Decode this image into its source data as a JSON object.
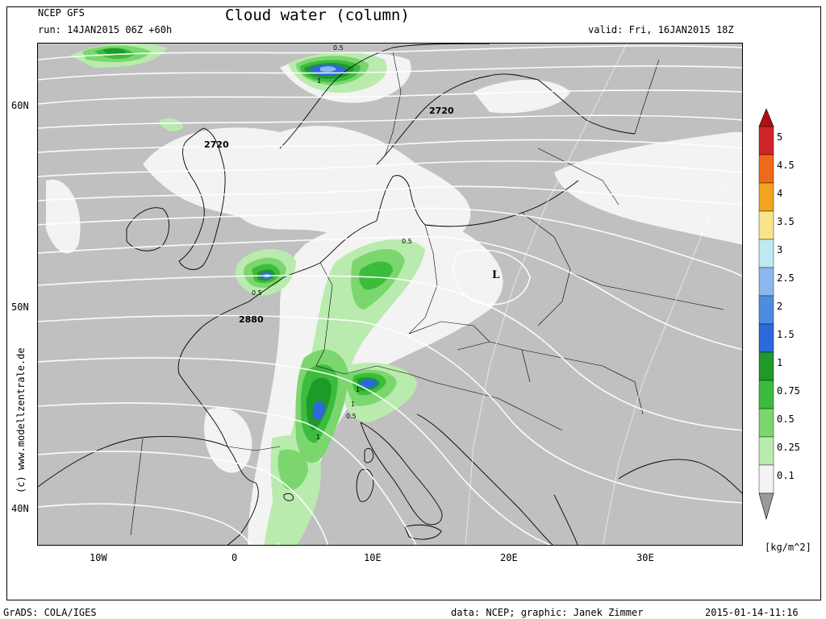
{
  "header": {
    "model": "NCEP GFS",
    "run": "run: 14JAN2015 06Z +60h",
    "title": "Cloud water (column)",
    "valid": "valid: Fri, 16JAN2015 18Z"
  },
  "watermark": "(c) www.modellzentrale.de",
  "axes": {
    "lat_labels": [
      "60N",
      "50N",
      "40N"
    ],
    "lon_labels": [
      "10W",
      "0",
      "10E",
      "20E",
      "30E"
    ]
  },
  "map_annotations": {
    "contour_labels": [
      "2720",
      "2720",
      "2880",
      "0.5",
      "0.5",
      "0.5",
      "0.5",
      "1",
      "1",
      "1",
      "1"
    ],
    "low_marker": "L"
  },
  "colorbar": {
    "unit": "[kg/m^2]",
    "levels": [
      "5",
      "4.5",
      "4",
      "3.5",
      "3",
      "2.5",
      "2",
      "1.5",
      "1",
      "0.75",
      "0.5",
      "0.25",
      "0.1"
    ],
    "colors": [
      "#d1242a",
      "#ee6a1a",
      "#f2a51c",
      "#f9e48b",
      "#bfe9f0",
      "#8ab8ec",
      "#4d8de0",
      "#2b6ad8",
      "#1e9a2a",
      "#3cbc3c",
      "#7bd66e",
      "#b9ebae",
      "#f3f3f3"
    ],
    "top_triangle_color": "#b01010",
    "bottom_triangle_color": "#9a9a9a"
  },
  "footer": {
    "left": "GrADS: COLA/IGES",
    "middle": "data: NCEP; graphic: Janek Zimmer",
    "right": "2015-01-14-11:16"
  }
}
